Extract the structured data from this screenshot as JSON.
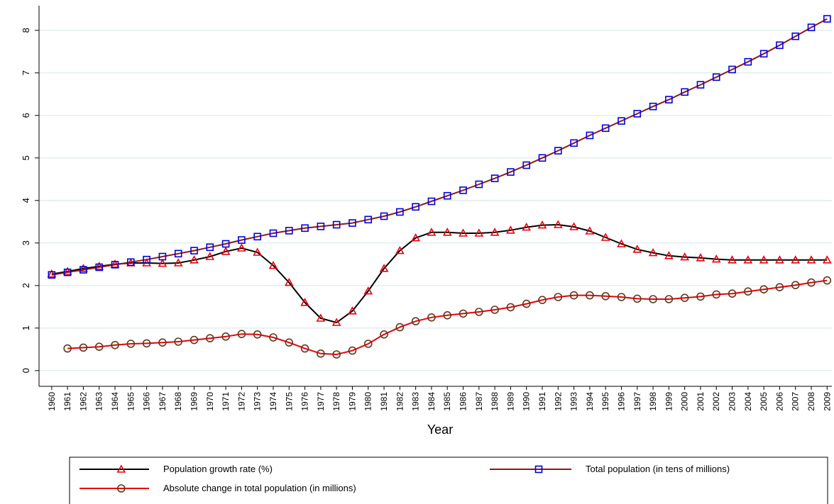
{
  "chart_data": {
    "type": "line",
    "x_label": "Year",
    "x": [
      1960,
      1961,
      1962,
      1963,
      1964,
      1965,
      1966,
      1967,
      1968,
      1969,
      1970,
      1971,
      1972,
      1973,
      1974,
      1975,
      1976,
      1977,
      1978,
      1979,
      1980,
      1981,
      1982,
      1983,
      1984,
      1985,
      1986,
      1987,
      1988,
      1989,
      1990,
      1991,
      1992,
      1993,
      1994,
      1995,
      1996,
      1997,
      1998,
      1999,
      2000,
      2001,
      2002,
      2003,
      2004,
      2005,
      2006,
      2007,
      2008,
      2009
    ],
    "xlim": [
      1959.2,
      2009.3
    ],
    "ylim": [
      -0.37,
      8.58
    ],
    "yticks": [
      0,
      1,
      2,
      3,
      4,
      5,
      6,
      7,
      8
    ],
    "grid": true,
    "legend": "bottom",
    "series": [
      {
        "name": "Population growth rate (%)",
        "color": "#000000",
        "marker": "triangle",
        "marker_color": "#e8000b",
        "values": [
          2.27,
          2.33,
          2.4,
          2.45,
          2.5,
          2.53,
          2.53,
          2.52,
          2.53,
          2.6,
          2.68,
          2.8,
          2.88,
          2.78,
          2.47,
          2.07,
          1.6,
          1.23,
          1.13,
          1.4,
          1.87,
          2.4,
          2.82,
          3.12,
          3.25,
          3.25,
          3.23,
          3.23,
          3.25,
          3.3,
          3.37,
          3.42,
          3.43,
          3.38,
          3.28,
          3.13,
          2.98,
          2.85,
          2.77,
          2.7,
          2.67,
          2.65,
          2.62,
          2.6,
          2.6,
          2.6,
          2.6,
          2.6,
          2.6,
          2.6
        ]
      },
      {
        "name": "Total population (in tens of millions)",
        "color": "#8b1a1a",
        "marker": "square",
        "marker_color": "#0000e0",
        "values": [
          2.25,
          2.31,
          2.37,
          2.43,
          2.49,
          2.55,
          2.61,
          2.68,
          2.75,
          2.82,
          2.9,
          2.98,
          3.07,
          3.15,
          3.23,
          3.29,
          3.35,
          3.39,
          3.43,
          3.47,
          3.55,
          3.63,
          3.73,
          3.85,
          3.98,
          4.11,
          4.24,
          4.38,
          4.52,
          4.67,
          4.83,
          5.0,
          5.17,
          5.35,
          5.53,
          5.7,
          5.87,
          6.04,
          6.21,
          6.37,
          6.55,
          6.72,
          6.9,
          7.08,
          7.26,
          7.45,
          7.65,
          7.86,
          8.07,
          8.27
        ]
      },
      {
        "name": "Absolute change in total population (in millions)",
        "color": "#e8000b",
        "marker": "circle",
        "marker_color": "#5c3a1a",
        "values": [
          null,
          0.52,
          0.54,
          0.56,
          0.6,
          0.63,
          0.64,
          0.66,
          0.68,
          0.72,
          0.76,
          0.8,
          0.86,
          0.85,
          0.78,
          0.66,
          0.52,
          0.4,
          0.38,
          0.47,
          0.63,
          0.85,
          1.02,
          1.16,
          1.25,
          1.3,
          1.34,
          1.38,
          1.43,
          1.49,
          1.57,
          1.66,
          1.73,
          1.77,
          1.77,
          1.75,
          1.73,
          1.69,
          1.68,
          1.68,
          1.71,
          1.74,
          1.79,
          1.81,
          1.86,
          1.91,
          1.96,
          2.01,
          2.07,
          2.12
        ]
      }
    ]
  }
}
